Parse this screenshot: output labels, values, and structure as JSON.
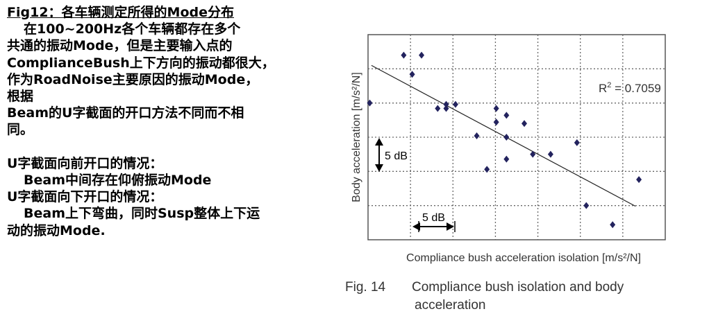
{
  "notes": {
    "lines": [
      {
        "text": "Fig12：各车辆测定所得的Mode分布",
        "style": "title"
      },
      {
        "text": "在100~200Hz各个车辆都存在多个",
        "style": "indent"
      },
      {
        "text": "共通的振动Mode，但是主要输入点的",
        "style": ""
      },
      {
        "text": "ComplianceBush上下方向的振动都很大，",
        "style": ""
      },
      {
        "text": "作为RoadNoise主要原因的振动Mode，",
        "style": ""
      },
      {
        "text": "根据",
        "style": ""
      },
      {
        "text": "Beam的U字截面的开口方法不同而不相",
        "style": ""
      },
      {
        "text": "同。",
        "style": ""
      },
      {
        "text": "",
        "style": "blank"
      },
      {
        "text": "U字截面向前开口的情况：",
        "style": ""
      },
      {
        "text": "Beam中间存在仰俯振动Mode",
        "style": "indent"
      },
      {
        "text": "U字截面向下开口的情况：",
        "style": ""
      },
      {
        "text": "Beam上下弯曲，同时Susp整体上下运",
        "style": "indent"
      },
      {
        "text": "动的振动Mode.",
        "style": ""
      }
    ]
  },
  "caption": {
    "number": "Fig. 14",
    "line1": "Compliance bush isolation and body",
    "line2": "acceleration"
  },
  "chart_data": {
    "type": "scatter",
    "xlabel": "Compliance bush acceleration isolation [m/s²/N]",
    "ylabel": "Body acceleration [m/s²/N]",
    "xlim": [
      0,
      35
    ],
    "ylim": [
      0,
      30
    ],
    "grid": true,
    "points": [
      {
        "x": 0.2,
        "y": 20
      },
      {
        "x": 4.2,
        "y": 27
      },
      {
        "x": 6.3,
        "y": 27
      },
      {
        "x": 5.2,
        "y": 24.2
      },
      {
        "x": 8.2,
        "y": 19.2
      },
      {
        "x": 9.2,
        "y": 19.2
      },
      {
        "x": 9.2,
        "y": 19.8
      },
      {
        "x": 10.3,
        "y": 19.8
      },
      {
        "x": 12.8,
        "y": 15.2
      },
      {
        "x": 14.0,
        "y": 10.3
      },
      {
        "x": 15.1,
        "y": 19.2
      },
      {
        "x": 15.1,
        "y": 17.2
      },
      {
        "x": 16.3,
        "y": 18.2
      },
      {
        "x": 16.3,
        "y": 15.0
      },
      {
        "x": 16.3,
        "y": 11.8
      },
      {
        "x": 18.4,
        "y": 17.0
      },
      {
        "x": 19.4,
        "y": 12.5
      },
      {
        "x": 21.5,
        "y": 12.5
      },
      {
        "x": 24.6,
        "y": 14.2
      },
      {
        "x": 25.7,
        "y": 5.0
      },
      {
        "x": 28.8,
        "y": 2.2
      },
      {
        "x": 31.9,
        "y": 8.8
      }
    ],
    "trendline": {
      "x": [
        0.4,
        31.5
      ],
      "y": [
        25.5,
        4.9
      ]
    },
    "annotations": {
      "r2_text": "R² = 0.7059",
      "y_span_label": "5 dB",
      "x_span_label": "5 dB"
    }
  }
}
